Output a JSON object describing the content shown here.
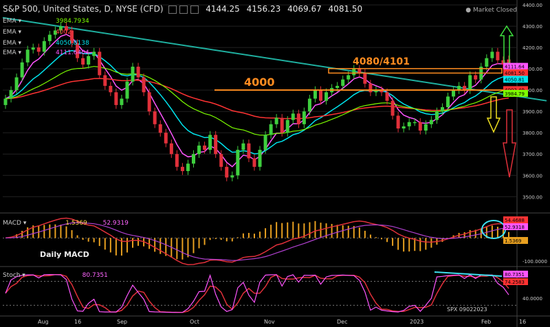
{
  "header": {
    "symbol": "S&P 500, United States, D, NYSE (CFD)",
    "open": "4144.25",
    "high": "4156.23",
    "low": "4069.67",
    "close": "4081.50",
    "market_status": "Market Closed"
  },
  "indicator_rows": [
    {
      "name": "EMA",
      "value": "3984.7934",
      "color": "#7cfc00"
    },
    {
      "name": "EMA",
      "value": "4002",
      "color": "#ff4040"
    },
    {
      "name": "EMA",
      "value": "4050.8138",
      "color": "#00e5ee"
    },
    {
      "name": "EMA",
      "value": "4111.6404",
      "color": "#ff55ff"
    }
  ],
  "macd_label": {
    "name": "MACD",
    "v1": "1.5369",
    "v2": "52.9319"
  },
  "stoch_label": {
    "name": "Stoch",
    "v1": "80.7351"
  },
  "daily_macd_text": "Daily MACD",
  "spx_text": "SPX 09022023",
  "chart_data": {
    "type": "candlestick",
    "annotations": {
      "level_4000": "4000",
      "level_4080_4101": "4080/4101"
    },
    "price_axis": {
      "ticks": [
        3500,
        3600,
        3700,
        3800,
        3900,
        4000,
        4100,
        4200,
        4300,
        4400
      ],
      "tick_labels": [
        "3500.00",
        "3600.00",
        "3700.00",
        "3800.00",
        "3900.00",
        "4000.00",
        "4100.00",
        "4200.00",
        "4300.00",
        "4400.00"
      ],
      "range": [
        3430,
        4410
      ]
    },
    "right_badges": [
      {
        "label": "4111.64",
        "value": 4111.64,
        "color": "#ff55ff"
      },
      {
        "label": "4081.50",
        "value": 4081.5,
        "color": "#ff3333"
      },
      {
        "label": "4050.81",
        "value": 4050.81,
        "color": "#00e5ee"
      },
      {
        "label": "4002.49",
        "value": 4002.49,
        "color": "#ff3333"
      },
      {
        "label": "3984.79",
        "value": 3984.79,
        "color": "#7cfc00"
      }
    ],
    "time_axis": {
      "labels": [
        "Aug",
        "16",
        "Sep",
        "Oct",
        "Nov",
        "Dec",
        "2023",
        "Feb",
        "16"
      ]
    },
    "candles": {
      "closes": [
        3960,
        4000,
        4060,
        4130,
        4190,
        4200,
        4180,
        4230,
        4260,
        4280,
        4300,
        4280,
        4220,
        4150,
        4120,
        4160,
        4180,
        4070,
        4020,
        3990,
        3930,
        3960,
        4040,
        4110,
        4060,
        3990,
        3900,
        3840,
        3800,
        3750,
        3700,
        3640,
        3620,
        3655,
        3700,
        3740,
        3720,
        3790,
        3700,
        3640,
        3590,
        3600,
        3720,
        3750,
        3680,
        3640,
        3720,
        3790,
        3840,
        3870,
        3800,
        3860,
        3890,
        3840,
        3900,
        3960,
        4000,
        3950,
        3990,
        4010,
        4020,
        4050,
        4070,
        4100,
        4080,
        4030,
        3990,
        4000,
        3990,
        3950,
        3880,
        3820,
        3830,
        3850,
        3850,
        3810,
        3840,
        3860,
        3900,
        3920,
        3970,
        4000,
        4020,
        4000,
        4070,
        4050,
        4110,
        4150,
        4180,
        4140,
        4120,
        4082
      ],
      "opens": [
        3930,
        3960,
        4000,
        4060,
        4130,
        4190,
        4200,
        4180,
        4230,
        4260,
        4280,
        4300,
        4280,
        4220,
        4150,
        4120,
        4160,
        4180,
        4070,
        4020,
        3990,
        3930,
        3960,
        4040,
        4110,
        4060,
        3990,
        3900,
        3840,
        3800,
        3750,
        3700,
        3640,
        3620,
        3655,
        3700,
        3740,
        3720,
        3790,
        3700,
        3640,
        3590,
        3600,
        3720,
        3750,
        3680,
        3640,
        3720,
        3790,
        3840,
        3870,
        3800,
        3860,
        3890,
        3840,
        3900,
        3960,
        4000,
        3950,
        3990,
        4010,
        4020,
        4050,
        4070,
        4100,
        4080,
        4030,
        3990,
        4000,
        3990,
        3950,
        3880,
        3820,
        3830,
        3850,
        3850,
        3810,
        3840,
        3860,
        3900,
        3920,
        3970,
        4000,
        4020,
        4000,
        4070,
        4050,
        4110,
        4150,
        4180,
        4140,
        4144
      ]
    },
    "series": [
      {
        "name": "EMA",
        "value": 4111.64,
        "color": "#ff55ff"
      },
      {
        "name": "EMA",
        "value": 4050.81,
        "color": "#00e5ee"
      },
      {
        "name": "EMA",
        "value": 4002.49,
        "color": "#ff3333"
      },
      {
        "name": "EMA",
        "value": 3984.79,
        "color": "#7cfc00"
      }
    ],
    "trendline": {
      "from": 4340,
      "to": 3950,
      "color": "#1fb0a0"
    },
    "macd_axis": {
      "tick_labels": [
        "54.4688",
        "52.9318",
        "1.5369",
        "-100.0000"
      ],
      "range": [
        -110,
        95
      ]
    },
    "stoch_axis": {
      "tick_labels": [
        "80.7351",
        "74.2583",
        "40.0000"
      ],
      "range": [
        0,
        110
      ]
    }
  }
}
